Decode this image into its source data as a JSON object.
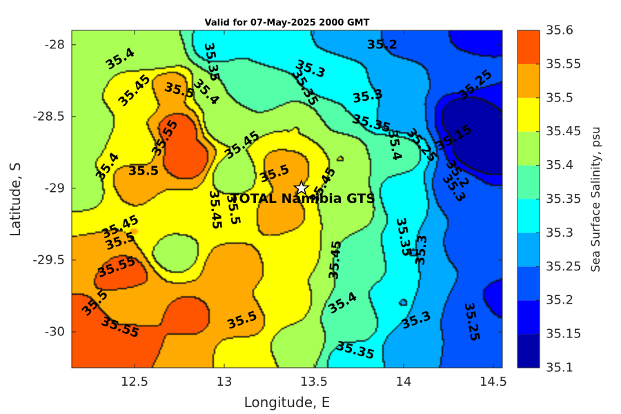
{
  "chart_data": {
    "type": "heatmap",
    "title": "Valid for 07-May-2025 2000 GMT",
    "xlabel": "Longitude, E",
    "ylabel": "Latitude, S",
    "xlim": [
      12.15,
      14.55
    ],
    "ylim": [
      -30.25,
      -27.9
    ],
    "xticks": [
      12.5,
      13,
      13.5,
      14,
      14.5
    ],
    "xtick_labels": [
      "12.5",
      "13",
      "13.5",
      "14",
      "14.5"
    ],
    "yticks": [
      -28,
      -28.5,
      -29,
      -29.5,
      -30
    ],
    "ytick_labels": [
      "-28",
      "-28.5",
      "-29",
      "-29.5",
      "-30"
    ],
    "colorbar": {
      "label": "Sea Surface Salinity, psu",
      "range": [
        35.1,
        35.6
      ],
      "levels": [
        35.1,
        35.15,
        35.2,
        35.25,
        35.3,
        35.35,
        35.4,
        35.45,
        35.5,
        35.55,
        35.6
      ],
      "tick_labels": [
        "35.6",
        "35.55",
        "35.5",
        "35.45",
        "35.4",
        "35.35",
        "35.3",
        "35.25",
        "35.2",
        "35.15",
        "35.1"
      ],
      "colors": [
        "#0000aa",
        "#0000ff",
        "#0055ff",
        "#00aaff",
        "#00ffff",
        "#55ffaa",
        "#aaff55",
        "#ffff00",
        "#ffaa00",
        "#ff5500"
      ]
    },
    "station": {
      "name": "TOTAL Namibia GTS",
      "lon": 13.43,
      "lat": -29.0
    },
    "anchors": [
      {
        "lon": 12.2,
        "lat": -27.95,
        "v": 35.43
      },
      {
        "lon": 12.2,
        "lat": -28.2,
        "v": 35.44
      },
      {
        "lon": 12.2,
        "lat": -28.6,
        "v": 35.4
      },
      {
        "lon": 12.2,
        "lat": -29.0,
        "v": 35.43
      },
      {
        "lon": 12.2,
        "lat": -29.4,
        "v": 35.5
      },
      {
        "lon": 12.2,
        "lat": -29.7,
        "v": 35.55
      },
      {
        "lon": 12.2,
        "lat": -30.0,
        "v": 35.58
      },
      {
        "lon": 12.2,
        "lat": -30.2,
        "v": 35.57
      },
      {
        "lon": 12.5,
        "lat": -28.0,
        "v": 35.43
      },
      {
        "lon": 12.5,
        "lat": -28.35,
        "v": 35.46
      },
      {
        "lon": 12.5,
        "lat": -28.7,
        "v": 35.47
      },
      {
        "lon": 12.5,
        "lat": -28.95,
        "v": 35.51
      },
      {
        "lon": 12.5,
        "lat": -29.3,
        "v": 35.5
      },
      {
        "lon": 12.45,
        "lat": -29.6,
        "v": 35.57
      },
      {
        "lon": 12.5,
        "lat": -29.8,
        "v": 35.52
      },
      {
        "lon": 12.5,
        "lat": -30.1,
        "v": 35.57
      },
      {
        "lon": 12.7,
        "lat": -28.3,
        "v": 35.52
      },
      {
        "lon": 12.75,
        "lat": -28.6,
        "v": 35.57
      },
      {
        "lon": 12.8,
        "lat": -28.8,
        "v": 35.58
      },
      {
        "lon": 12.75,
        "lat": -29.15,
        "v": 35.49
      },
      {
        "lon": 12.72,
        "lat": -29.45,
        "v": 35.43
      },
      {
        "lon": 12.8,
        "lat": -29.9,
        "v": 35.56
      },
      {
        "lon": 12.8,
        "lat": -30.2,
        "v": 35.52
      },
      {
        "lon": 12.65,
        "lat": -28.05,
        "v": 35.42
      },
      {
        "lon": 12.95,
        "lat": -28.0,
        "v": 35.33
      },
      {
        "lon": 12.95,
        "lat": -28.3,
        "v": 35.4
      },
      {
        "lon": 13.0,
        "lat": -28.55,
        "v": 35.42
      },
      {
        "lon": 13.05,
        "lat": -28.9,
        "v": 35.43
      },
      {
        "lon": 13.05,
        "lat": -29.2,
        "v": 35.46
      },
      {
        "lon": 13.05,
        "lat": -29.55,
        "v": 35.53
      },
      {
        "lon": 13.1,
        "lat": -29.9,
        "v": 35.52
      },
      {
        "lon": 13.1,
        "lat": -30.2,
        "v": 35.47
      },
      {
        "lon": 13.3,
        "lat": -28.0,
        "v": 35.32
      },
      {
        "lon": 13.2,
        "lat": -28.3,
        "v": 35.37
      },
      {
        "lon": 13.4,
        "lat": -28.6,
        "v": 35.45
      },
      {
        "lon": 13.35,
        "lat": -28.85,
        "v": 35.52
      },
      {
        "lon": 13.3,
        "lat": -29.2,
        "v": 35.52
      },
      {
        "lon": 13.4,
        "lat": -29.45,
        "v": 35.46
      },
      {
        "lon": 13.35,
        "lat": -29.8,
        "v": 35.46
      },
      {
        "lon": 13.4,
        "lat": -30.1,
        "v": 35.44
      },
      {
        "lon": 13.7,
        "lat": -27.95,
        "v": 35.26
      },
      {
        "lon": 13.6,
        "lat": -28.2,
        "v": 35.33
      },
      {
        "lon": 13.7,
        "lat": -28.45,
        "v": 35.35
      },
      {
        "lon": 13.65,
        "lat": -28.8,
        "v": 35.45
      },
      {
        "lon": 13.7,
        "lat": -29.1,
        "v": 35.43
      },
      {
        "lon": 13.75,
        "lat": -29.5,
        "v": 35.39
      },
      {
        "lon": 13.7,
        "lat": -29.9,
        "v": 35.38
      },
      {
        "lon": 13.7,
        "lat": -30.2,
        "v": 35.34
      },
      {
        "lon": 14.1,
        "lat": -27.95,
        "v": 35.21
      },
      {
        "lon": 14.0,
        "lat": -28.25,
        "v": 35.27
      },
      {
        "lon": 14.0,
        "lat": -28.5,
        "v": 35.26
      },
      {
        "lon": 13.95,
        "lat": -28.75,
        "v": 35.38
      },
      {
        "lon": 14.0,
        "lat": -29.05,
        "v": 35.33
      },
      {
        "lon": 14.05,
        "lat": -29.45,
        "v": 35.3
      },
      {
        "lon": 14.0,
        "lat": -29.8,
        "v": 35.3
      },
      {
        "lon": 14.05,
        "lat": -30.15,
        "v": 35.27
      },
      {
        "lon": 14.4,
        "lat": -27.95,
        "v": 35.19
      },
      {
        "lon": 14.3,
        "lat": -28.2,
        "v": 35.23
      },
      {
        "lon": 14.35,
        "lat": -28.5,
        "v": 35.12
      },
      {
        "lon": 14.45,
        "lat": -28.75,
        "v": 35.11
      },
      {
        "lon": 14.3,
        "lat": -29.0,
        "v": 35.22
      },
      {
        "lon": 14.35,
        "lat": -29.4,
        "v": 35.24
      },
      {
        "lon": 14.4,
        "lat": -29.9,
        "v": 35.23
      },
      {
        "lon": 14.4,
        "lat": -30.2,
        "v": 35.22
      },
      {
        "lon": 14.55,
        "lat": -28.2,
        "v": 35.2
      },
      {
        "lon": 14.55,
        "lat": -29.2,
        "v": 35.22
      },
      {
        "lon": 14.55,
        "lat": -29.8,
        "v": 35.19
      },
      {
        "lon": 14.55,
        "lat": -30.2,
        "v": 35.2
      }
    ],
    "contour_labels": [
      {
        "text": "35.4",
        "lon": 12.42,
        "lat": -28.1,
        "angle": -30
      },
      {
        "text": "35.45",
        "lon": 12.5,
        "lat": -28.32,
        "angle": -45
      },
      {
        "text": "35.35",
        "lon": 12.93,
        "lat": -28.12,
        "angle": 80
      },
      {
        "text": "35.5",
        "lon": 12.75,
        "lat": -28.32,
        "angle": 15
      },
      {
        "text": "35.4",
        "lon": 12.9,
        "lat": -28.33,
        "angle": 45
      },
      {
        "text": "35.3",
        "lon": 13.48,
        "lat": -28.17,
        "angle": 20
      },
      {
        "text": "35.35",
        "lon": 13.45,
        "lat": -28.3,
        "angle": 60
      },
      {
        "text": "35.2",
        "lon": 13.88,
        "lat": -28.0,
        "angle": 0
      },
      {
        "text": "35.3",
        "lon": 13.8,
        "lat": -28.36,
        "angle": -10
      },
      {
        "text": "35.25",
        "lon": 14.4,
        "lat": -28.28,
        "angle": -40
      },
      {
        "text": "35.55",
        "lon": 12.67,
        "lat": -28.65,
        "angle": -60
      },
      {
        "text": "35.45",
        "lon": 13.1,
        "lat": -28.7,
        "angle": -35
      },
      {
        "text": "35.35",
        "lon": 13.82,
        "lat": -28.55,
        "angle": 15
      },
      {
        "text": "35.4",
        "lon": 13.95,
        "lat": -28.7,
        "angle": 80
      },
      {
        "text": "35.25",
        "lon": 14.1,
        "lat": -28.7,
        "angle": 50
      },
      {
        "text": "35.15",
        "lon": 14.28,
        "lat": -28.65,
        "angle": -30
      },
      {
        "text": "35.4",
        "lon": 12.35,
        "lat": -28.85,
        "angle": -55
      },
      {
        "text": "35.5",
        "lon": 12.55,
        "lat": -28.88,
        "angle": 0
      },
      {
        "text": "35.5",
        "lon": 13.28,
        "lat": -28.9,
        "angle": -20
      },
      {
        "text": "35.45",
        "lon": 13.55,
        "lat": -28.98,
        "angle": -60
      },
      {
        "text": "35.2",
        "lon": 14.3,
        "lat": -28.9,
        "angle": 55
      },
      {
        "text": "35.3",
        "lon": 14.28,
        "lat": -29.0,
        "angle": 55
      },
      {
        "text": "35.45",
        "lon": 12.95,
        "lat": -29.15,
        "angle": 85
      },
      {
        "text": "35.5",
        "lon": 13.05,
        "lat": -29.15,
        "angle": 80
      },
      {
        "text": "35.35",
        "lon": 14.0,
        "lat": -29.34,
        "angle": 80
      },
      {
        "text": "35.45",
        "lon": 12.42,
        "lat": -29.27,
        "angle": -25
      },
      {
        "text": "35.5",
        "lon": 12.42,
        "lat": -29.37,
        "angle": -20
      },
      {
        "text": "35.3",
        "lon": 14.1,
        "lat": -29.43,
        "angle": -85
      },
      {
        "text": "35.55",
        "lon": 12.4,
        "lat": -29.55,
        "angle": -20
      },
      {
        "text": "35.45",
        "lon": 13.62,
        "lat": -29.5,
        "angle": -85
      },
      {
        "text": "35.5",
        "lon": 12.28,
        "lat": -29.8,
        "angle": -45
      },
      {
        "text": "35.4",
        "lon": 13.66,
        "lat": -29.8,
        "angle": -30
      },
      {
        "text": "35.55",
        "lon": 12.42,
        "lat": -29.97,
        "angle": 20
      },
      {
        "text": "35.5",
        "lon": 13.1,
        "lat": -29.92,
        "angle": -20
      },
      {
        "text": "35.3",
        "lon": 14.07,
        "lat": -29.92,
        "angle": -20
      },
      {
        "text": "35.25",
        "lon": 14.38,
        "lat": -29.93,
        "angle": 80
      },
      {
        "text": "35.35",
        "lon": 13.73,
        "lat": -30.13,
        "angle": 15
      }
    ]
  }
}
